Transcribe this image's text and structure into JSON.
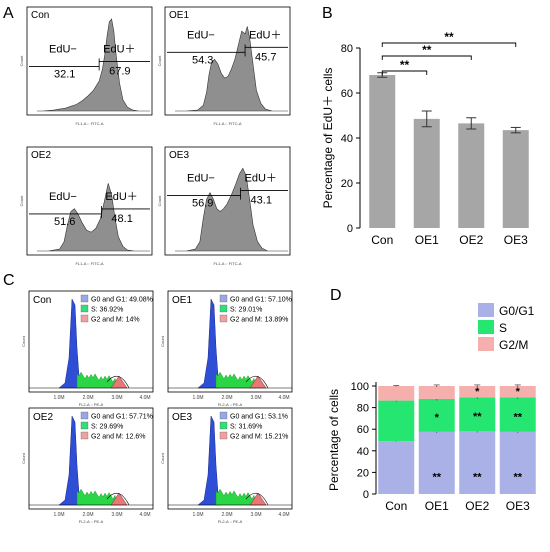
{
  "panel_letters": [
    "A",
    "B",
    "C",
    "D"
  ],
  "colors": {
    "histogram_fill": "#8f8f8f",
    "bar_gray": "#a6a6a6",
    "g0g1": "#aab1e6",
    "s": "#26e672",
    "g2m": "#f5b0ae",
    "cyto_g0": "#2f4ed6",
    "cyto_s": "#2bd646",
    "cyto_g2": "#e87878",
    "cyto_legend_g0": "#9aa6e6",
    "cyto_legend_s": "#33dd77",
    "cyto_legend_g2": "#f0a0a0"
  },
  "panel_a": {
    "axis_label": "FL1-A :: FITC-A",
    "count_label": "Count",
    "plots": [
      {
        "name": "Con",
        "left_label": "EdU−",
        "left_value": "32.1",
        "right_label": "EdU＋",
        "right_value": "67.9"
      },
      {
        "name": "OE1",
        "left_label": "EdU−",
        "left_value": "54.3",
        "right_label": "EdU＋",
        "right_value": "45.7"
      },
      {
        "name": "OE2",
        "left_label": "EdU−",
        "left_value": "51.6",
        "right_label": "EdU＋",
        "right_value": "48.1"
      },
      {
        "name": "OE3",
        "left_label": "EdU−",
        "left_value": "56.9",
        "right_label": "EdU＋",
        "right_value": "43.1"
      }
    ]
  },
  "panel_c": {
    "axis_label": "FL2-A :: PE-A",
    "count_label": "Count",
    "x_ticks": [
      "1.0M",
      "2.0M",
      "3.0M",
      "4.0M"
    ],
    "plots": [
      {
        "name": "Con",
        "g0g1": "G0 and G1: 49.08%",
        "s": "S: 36.92%",
        "g2m": "G2 and M: 14%"
      },
      {
        "name": "OE1",
        "g0g1": "G0 and G1: 57.10%",
        "s": "S: 29.01%",
        "g2m": "G2 and M: 13.89%"
      },
      {
        "name": "OE2",
        "g0g1": "G0 and G1: 57.71%",
        "s": "S: 29.69%",
        "g2m": "G2 and M: 12.6%"
      },
      {
        "name": "OE3",
        "g0g1": "G0 and G1: 53.1%",
        "s": "S: 31.69%",
        "g2m": "G2 and M: 15.21%"
      }
    ]
  },
  "chart_data": [
    {
      "type": "bar",
      "panel": "B",
      "categories": [
        "Con",
        "OE1",
        "OE2",
        "OE3"
      ],
      "values": [
        68,
        48.5,
        46.5,
        43.5
      ],
      "errors": [
        1,
        3.5,
        2.5,
        1.2
      ],
      "ylabel": "Percentage of EdU＋ cells",
      "ylim": [
        0,
        80
      ],
      "yticks": [
        0,
        20,
        40,
        60,
        80
      ],
      "significance": [
        {
          "from": "Con",
          "to": "OE1",
          "label": "**"
        },
        {
          "from": "Con",
          "to": "OE2",
          "label": "**"
        },
        {
          "from": "Con",
          "to": "OE3",
          "label": "**"
        }
      ]
    },
    {
      "type": "bar",
      "panel": "D",
      "stacked": true,
      "categories": [
        "Con",
        "OE1",
        "OE2",
        "OE3"
      ],
      "ylabel": "Percentage of cells",
      "ylim": [
        0,
        100
      ],
      "yticks": [
        0,
        20,
        40,
        60,
        80,
        100
      ],
      "legend_position": "top-right",
      "series": [
        {
          "name": "G0/G1",
          "values": [
            49,
            57.5,
            58,
            57.5
          ],
          "errors": [
            0.5,
            1,
            1,
            1
          ],
          "marks": [
            "",
            "**",
            "**",
            "**"
          ]
        },
        {
          "name": "S",
          "values": [
            37.5,
            30.5,
            31.5,
            32
          ],
          "errors": [
            1,
            1.5,
            1.5,
            1.5
          ],
          "marks": [
            "",
            "*",
            "**",
            "**"
          ]
        },
        {
          "name": "G2/M",
          "values": [
            13.5,
            12,
            10.5,
            10.5
          ],
          "errors": [
            0.5,
            1,
            1,
            1
          ],
          "marks": [
            "",
            "",
            "*",
            "*"
          ]
        }
      ]
    }
  ]
}
